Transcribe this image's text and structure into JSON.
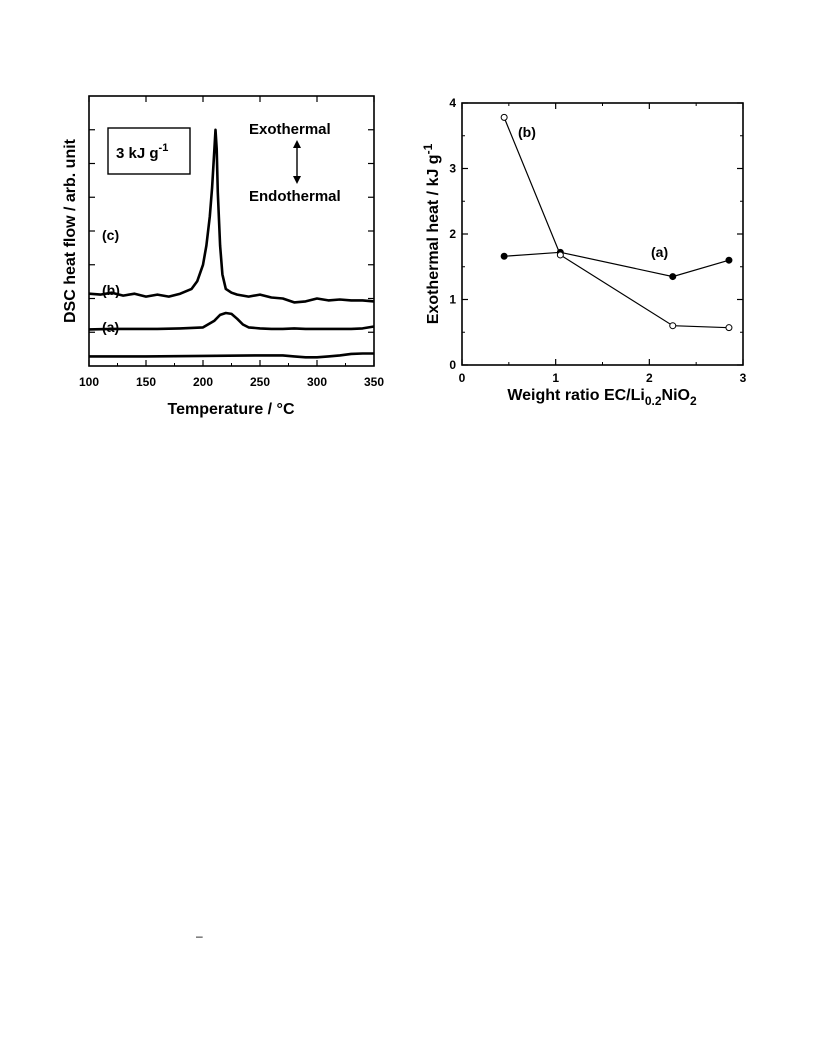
{
  "chart_data": [
    {
      "type": "line",
      "ylabel": "DSC heat flow / arb. unit",
      "xlabel": "Temperature / °C",
      "xlim": [
        100,
        350
      ],
      "xticks": [
        "100",
        "150",
        "200",
        "250",
        "300",
        "350"
      ],
      "scale_box": {
        "text": "3 kJ g",
        "sup": "-1"
      },
      "annotations": {
        "exo": "Exothermal",
        "endo": "Endothermal"
      },
      "series": [
        {
          "name": "(c)",
          "x": [
            100,
            110,
            120,
            130,
            140,
            150,
            160,
            170,
            180,
            190,
            195,
            200,
            203,
            206,
            208,
            210,
            211,
            212,
            213,
            215,
            217,
            220,
            225,
            230,
            240,
            250,
            260,
            270,
            280,
            290,
            300,
            310,
            320,
            330,
            340,
            350
          ],
          "y": [
            7.5,
            7.4,
            7.6,
            7.3,
            7.5,
            7.2,
            7.4,
            7.2,
            7.5,
            8.0,
            8.8,
            10.5,
            12.5,
            15.5,
            18.5,
            22.5,
            24.5,
            22.5,
            18,
            12.5,
            9.5,
            8.0,
            7.6,
            7.4,
            7.2,
            7.4,
            7.1,
            7.0,
            6.6,
            6.7,
            7.0,
            6.8,
            6.9,
            6.8,
            6.8,
            6.7
          ]
        },
        {
          "name": "(b)",
          "x": [
            100,
            120,
            140,
            160,
            180,
            200,
            210,
            215,
            220,
            225,
            230,
            235,
            240,
            250,
            260,
            270,
            280,
            290,
            300,
            310,
            320,
            330,
            340,
            350
          ],
          "y": [
            3.8,
            3.85,
            3.85,
            3.85,
            3.9,
            4.0,
            4.7,
            5.3,
            5.5,
            5.4,
            4.9,
            4.3,
            4.0,
            3.9,
            3.85,
            3.85,
            3.9,
            3.85,
            3.85,
            3.85,
            3.85,
            3.85,
            3.9,
            4.1
          ]
        },
        {
          "name": "(a)",
          "x": [
            100,
            150,
            200,
            250,
            270,
            280,
            290,
            300,
            310,
            320,
            330,
            340,
            350
          ],
          "y": [
            1.0,
            1.0,
            1.05,
            1.1,
            1.1,
            1.0,
            0.9,
            0.9,
            1.0,
            1.1,
            1.25,
            1.3,
            1.3
          ]
        }
      ]
    },
    {
      "type": "line",
      "ylabel": "Exothermal heat / kJ g",
      "ylabel_sup": "-1",
      "xlabel": "Weight ratio EC/Li",
      "xlabel_sub1": "0.2",
      "xlabel_mid": "NiO",
      "xlabel_sub2": "2",
      "xlim": [
        0,
        3
      ],
      "ylim": [
        0,
        4
      ],
      "xticks": [
        "0",
        "1",
        "2",
        "3"
      ],
      "yticks": [
        "0",
        "1",
        "2",
        "3",
        "4"
      ],
      "series": [
        {
          "name": "(a)",
          "marker": "filled",
          "x": [
            0.45,
            1.05,
            2.25,
            2.85
          ],
          "y": [
            1.66,
            1.72,
            1.35,
            1.6
          ]
        },
        {
          "name": "(b)",
          "marker": "open",
          "x": [
            0.45,
            1.05,
            2.25,
            2.85
          ],
          "y": [
            3.78,
            1.68,
            0.6,
            0.57
          ]
        }
      ]
    }
  ],
  "footer_mark": "–"
}
